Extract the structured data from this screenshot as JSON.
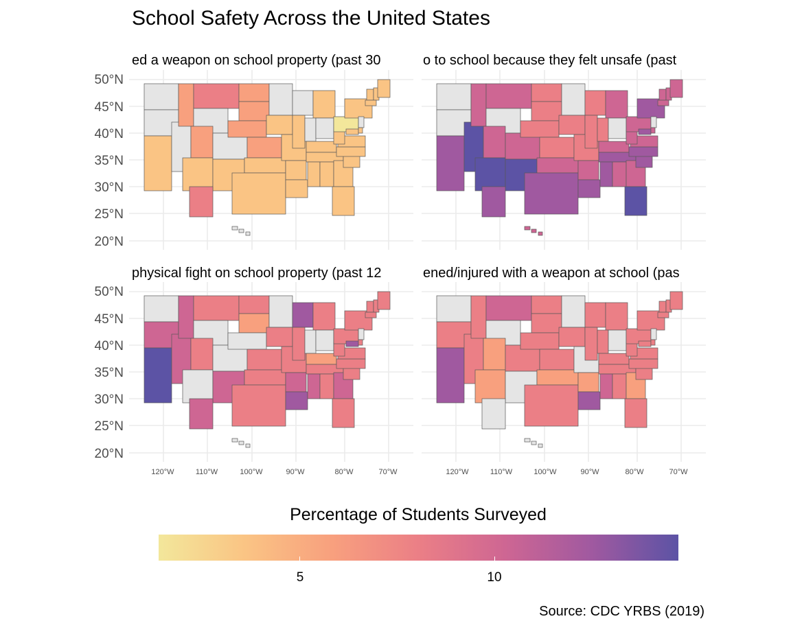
{
  "title": "School Safety Across the United States",
  "caption": "Source: CDC YRBS (2019)",
  "legend": {
    "title": "Percentage of Students Surveyed",
    "ticks": [
      "5",
      "10"
    ],
    "colors": [
      "#f3e79b",
      "#fac484",
      "#f8a07e",
      "#eb7f86",
      "#ce6693",
      "#a059a0",
      "#5c53a5"
    ]
  },
  "axes": {
    "y_labels": [
      "50°N",
      "45°N",
      "40°N",
      "35°N",
      "30°N",
      "25°N",
      "20°N"
    ],
    "x_labels": [
      "120°W",
      "110°W",
      "100°W",
      "90°W",
      "80°W",
      "70°W"
    ]
  },
  "panels": [
    {
      "title": "ed a weapon on school property (past 30"
    },
    {
      "title": "o to school because they felt unsafe (past"
    },
    {
      "title": "physical fight on school property (past 12"
    },
    {
      "title": "ened/injured with a weapon at school (pas"
    }
  ],
  "missing_color": "#e5e5e5"
}
